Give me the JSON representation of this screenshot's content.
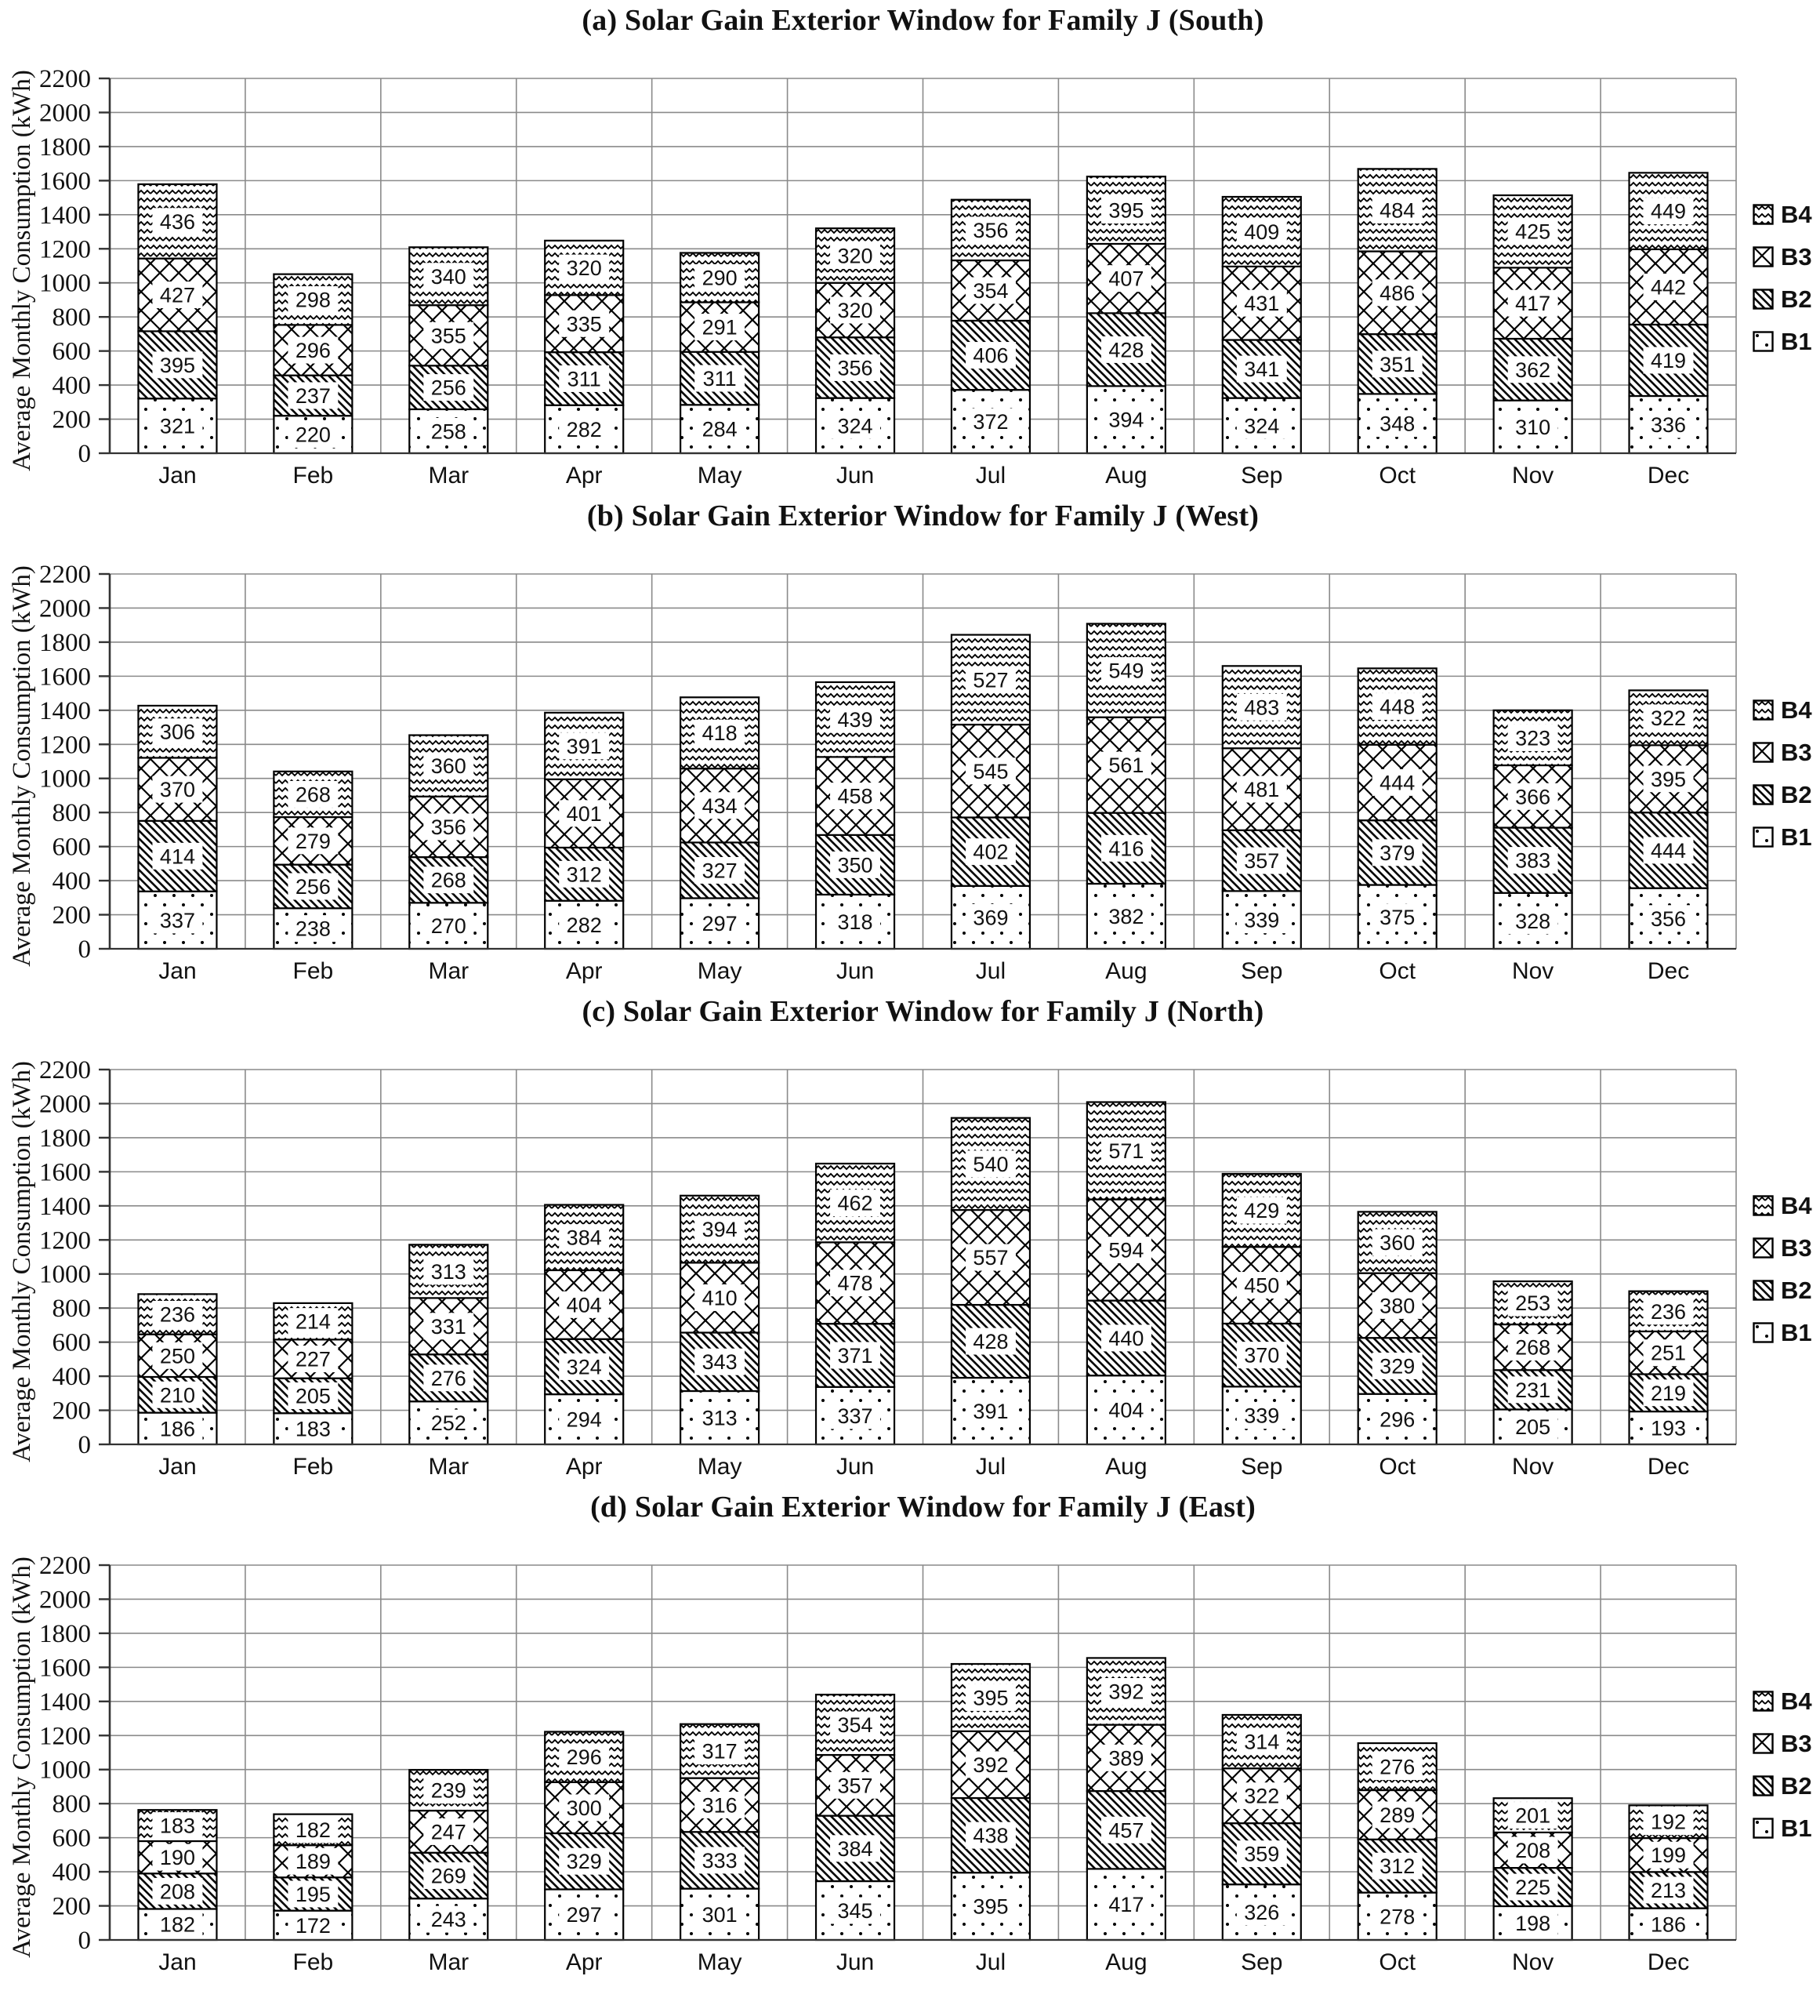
{
  "figure_caption_labels": [
    "(a)",
    "(b)",
    "(c)",
    "(d)"
  ],
  "colors": {
    "bar_fill": "#ffffff",
    "bar_stroke": "#000000",
    "gridline": "#8a8a8a",
    "axis": "#333333",
    "text": "#111111"
  },
  "chart_data": [
    {
      "type": "bar",
      "stacked": true,
      "title": "(a) Solar Gain Exterior Window for Family J (South)",
      "ylabel": "Average Monthly Consumption (kWh)",
      "xlabel": "",
      "ylim": [
        0,
        2200
      ],
      "ytick_step": 200,
      "grid": true,
      "legend_position": "right",
      "legend": [
        "B4",
        "B3",
        "B2",
        "B1"
      ],
      "categories": [
        "Jan",
        "Feb",
        "Mar",
        "Apr",
        "May",
        "Jun",
        "Jul",
        "Aug",
        "Sep",
        "Oct",
        "Nov",
        "Dec"
      ],
      "series": [
        {
          "name": "B1",
          "pattern": "dots",
          "values": [
            321,
            220,
            258,
            282,
            284,
            324,
            372,
            394,
            324,
            348,
            310,
            336
          ]
        },
        {
          "name": "B2",
          "pattern": "diagonal",
          "values": [
            395,
            237,
            256,
            311,
            311,
            356,
            406,
            428,
            341,
            351,
            362,
            419
          ]
        },
        {
          "name": "B3",
          "pattern": "crosshatch",
          "values": [
            427,
            296,
            355,
            335,
            291,
            320,
            354,
            407,
            431,
            486,
            417,
            442
          ]
        },
        {
          "name": "B4",
          "pattern": "zigzag",
          "values": [
            436,
            298,
            340,
            320,
            290,
            320,
            356,
            395,
            409,
            484,
            425,
            449
          ]
        }
      ]
    },
    {
      "type": "bar",
      "stacked": true,
      "title": "(b) Solar Gain Exterior Window for Family J (West)",
      "ylabel": "Average Monthly Consumption (kWh)",
      "xlabel": "",
      "ylim": [
        0,
        2200
      ],
      "ytick_step": 200,
      "grid": true,
      "legend_position": "right",
      "legend": [
        "B4",
        "B3",
        "B2",
        "B1"
      ],
      "categories": [
        "Jan",
        "Feb",
        "Mar",
        "Apr",
        "May",
        "Jun",
        "Jul",
        "Aug",
        "Sep",
        "Oct",
        "Nov",
        "Dec"
      ],
      "series": [
        {
          "name": "B1",
          "pattern": "dots",
          "values": [
            337,
            238,
            270,
            282,
            297,
            318,
            369,
            382,
            339,
            375,
            328,
            356
          ]
        },
        {
          "name": "B2",
          "pattern": "diagonal",
          "values": [
            414,
            256,
            268,
            312,
            327,
            350,
            402,
            416,
            357,
            379,
            383,
            444
          ]
        },
        {
          "name": "B3",
          "pattern": "crosshatch",
          "values": [
            370,
            279,
            356,
            401,
            434,
            458,
            545,
            561,
            481,
            444,
            366,
            395
          ]
        },
        {
          "name": "B4",
          "pattern": "zigzag",
          "values": [
            306,
            268,
            360,
            391,
            418,
            439,
            527,
            549,
            483,
            448,
            323,
            322
          ]
        }
      ]
    },
    {
      "type": "bar",
      "stacked": true,
      "title": "(c) Solar Gain Exterior Window for Family J (North)",
      "ylabel": "Average Monthly Consumption (kWh)",
      "xlabel": "",
      "ylim": [
        0,
        2200
      ],
      "ytick_step": 200,
      "grid": true,
      "legend_position": "right",
      "legend": [
        "B4",
        "B3",
        "B2",
        "B1"
      ],
      "categories": [
        "Jan",
        "Feb",
        "Mar",
        "Apr",
        "May",
        "Jun",
        "Jul",
        "Aug",
        "Sep",
        "Oct",
        "Nov",
        "Dec"
      ],
      "series": [
        {
          "name": "B1",
          "pattern": "dots",
          "values": [
            186,
            183,
            252,
            294,
            313,
            337,
            391,
            404,
            339,
            296,
            205,
            193
          ]
        },
        {
          "name": "B2",
          "pattern": "diagonal",
          "values": [
            210,
            205,
            276,
            324,
            343,
            371,
            428,
            440,
            370,
            329,
            231,
            219
          ]
        },
        {
          "name": "B3",
          "pattern": "crosshatch",
          "values": [
            250,
            227,
            331,
            404,
            410,
            478,
            557,
            594,
            450,
            380,
            268,
            251
          ]
        },
        {
          "name": "B4",
          "pattern": "zigzag",
          "values": [
            236,
            214,
            313,
            384,
            394,
            462,
            540,
            571,
            429,
            360,
            253,
            236
          ]
        }
      ]
    },
    {
      "type": "bar",
      "stacked": true,
      "title": "(d) Solar Gain Exterior Window for Family J (East)",
      "ylabel": "Average Monthly Consumption (kWh)",
      "xlabel": "",
      "ylim": [
        0,
        2200
      ],
      "ytick_step": 200,
      "grid": true,
      "legend_position": "right",
      "legend": [
        "B4",
        "B3",
        "B2",
        "B1"
      ],
      "categories": [
        "Jan",
        "Feb",
        "Mar",
        "Apr",
        "May",
        "Jun",
        "Jul",
        "Aug",
        "Sep",
        "Oct",
        "Nov",
        "Dec"
      ],
      "series": [
        {
          "name": "B1",
          "pattern": "dots",
          "values": [
            182,
            172,
            243,
            297,
            301,
            345,
            395,
            417,
            326,
            278,
            198,
            186
          ]
        },
        {
          "name": "B2",
          "pattern": "diagonal",
          "values": [
            208,
            195,
            269,
            329,
            333,
            384,
            438,
            457,
            359,
            312,
            225,
            213
          ]
        },
        {
          "name": "B3",
          "pattern": "crosshatch",
          "values": [
            190,
            189,
            247,
            300,
            316,
            357,
            392,
            389,
            322,
            289,
            208,
            199
          ]
        },
        {
          "name": "B4",
          "pattern": "zigzag",
          "values": [
            183,
            182,
            239,
            296,
            317,
            354,
            395,
            392,
            314,
            276,
            201,
            192
          ]
        }
      ]
    }
  ]
}
